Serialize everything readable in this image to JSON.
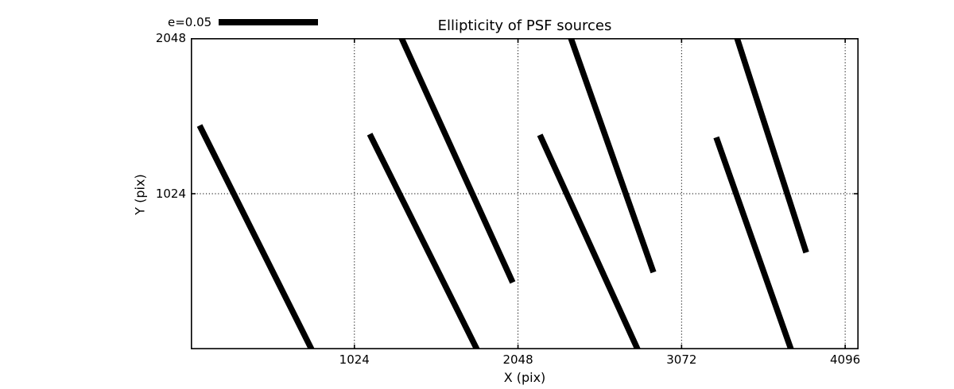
{
  "title": "Ellipticity of PSF sources",
  "legend": {
    "label": "e=0.05"
  },
  "axes": {
    "xlabel": "X (pix)",
    "ylabel": "Y (pix)"
  },
  "chart_data": {
    "type": "line",
    "subtype": "psf-ellipticity-whisker-map",
    "title": "Ellipticity of PSF sources",
    "xlabel": "X (pix)",
    "ylabel": "Y (pix)",
    "xlim": [
      0,
      4180
    ],
    "ylim": [
      0,
      2048
    ],
    "xticks": [
      1024,
      2048,
      3072,
      4096
    ],
    "yticks": [
      1024,
      2048
    ],
    "grid": "dotted",
    "legend_scale_bar": {
      "label": "e=0.05"
    },
    "line_color": "#000000",
    "line_width": 7.5,
    "segments": [
      {
        "x": [
          55,
          756
        ],
        "y": [
          1473,
          0
        ]
      },
      {
        "x": [
          1120,
          1791
        ],
        "y": [
          1416,
          0
        ]
      },
      {
        "x": [
          1319,
          2015
        ],
        "y": [
          2048,
          440
        ]
      },
      {
        "x": [
          2185,
          2797
        ],
        "y": [
          1411,
          0
        ]
      },
      {
        "x": [
          2379,
          2896
        ],
        "y": [
          2048,
          507
        ]
      },
      {
        "x": [
          3289,
          3757
        ],
        "y": [
          1395,
          0
        ]
      },
      {
        "x": [
          3419,
          3852
        ],
        "y": [
          2048,
          637
        ]
      }
    ]
  }
}
